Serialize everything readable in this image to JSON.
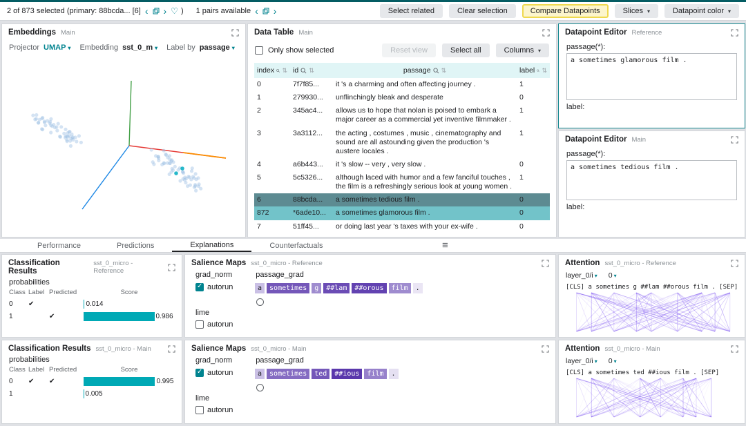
{
  "colors": {
    "accent": "#00838f",
    "score_bar": "#00a9b5",
    "salience_base": "#512da8",
    "attention_line": "#6b3df0",
    "selected_primary_row": "#5d8b92",
    "selected_secondary_row": "#72c3c9",
    "compare_button_bg": "#fcf5cc",
    "compare_button_border": "#efd94e"
  },
  "icons": {
    "prev": "‹",
    "next": "›",
    "favorite": "♡",
    "caret_down": "▾",
    "sort": "⇅",
    "menu": "≡",
    "check": "✔"
  },
  "toolbar": {
    "selection_text": "2 of 873 selected (primary: 88bcda... [6]",
    "selection_suffix": ")",
    "pairs_text": "1 pairs available",
    "buttons": {
      "select_related": "Select related",
      "clear_selection": "Clear selection",
      "compare_datapoints": "Compare Datapoints",
      "slices": "Slices",
      "datapoint_color": "Datapoint color"
    }
  },
  "embeddings": {
    "title": "Embeddings",
    "subtitle": "Main",
    "projector_label": "Projector",
    "projector_value": "UMAP",
    "embedding_label": "Embedding",
    "embedding_value": "sst_0_m",
    "label_by_label": "Label by",
    "label_by_value": "passage"
  },
  "data_table": {
    "title": "Data Table",
    "subtitle": "Main",
    "only_show_selected": "Only show selected",
    "reset_view": "Reset view",
    "select_all": "Select all",
    "columns": "Columns",
    "headers": [
      "index",
      "id",
      "passage",
      "label"
    ],
    "rows": [
      {
        "index": "0",
        "id": "7f7f85...",
        "passage": "it 's a charming and often affecting journey .",
        "label": "1",
        "state": ""
      },
      {
        "index": "1",
        "id": "279930...",
        "passage": "unflinchingly bleak and desperate",
        "label": "0",
        "state": ""
      },
      {
        "index": "2",
        "id": "345ac4...",
        "passage": "allows us to hope that nolan is poised to embark a major career as a commercial yet inventive filmmaker .",
        "label": "1",
        "state": ""
      },
      {
        "index": "3",
        "id": "3a3112...",
        "passage": "the acting , costumes , music , cinematography and sound are all astounding given the production 's austere locales .",
        "label": "1",
        "state": ""
      },
      {
        "index": "4",
        "id": "a6b443...",
        "passage": "it 's slow -- very , very slow .",
        "label": "0",
        "state": ""
      },
      {
        "index": "5",
        "id": "5c5326...",
        "passage": "although laced with humor and a few fanciful touches , the film is a refreshingly serious look at young women .",
        "label": "1",
        "state": ""
      },
      {
        "index": "6",
        "id": "88bcda...",
        "passage": "a sometimes tedious film .",
        "label": "0",
        "state": "primary"
      },
      {
        "index": "872",
        "id": "*6ade10...",
        "passage": "a sometimes glamorous film .",
        "label": "0",
        "state": "secondary"
      },
      {
        "index": "7",
        "id": "51ff45...",
        "passage": "or doing last year 's taxes with your ex-wife .",
        "label": "0",
        "state": ""
      }
    ]
  },
  "datapoint_editor_reference": {
    "title": "Datapoint Editor",
    "subtitle": "Reference",
    "passage_label": "passage(*):",
    "passage_value": "a sometimes glamorous film .",
    "label_label": "label:"
  },
  "datapoint_editor_main": {
    "title": "Datapoint Editor",
    "subtitle": "Main",
    "passage_label": "passage(*):",
    "passage_value": "a sometimes tedious film .",
    "label_label": "label:"
  },
  "tabs": {
    "items": [
      "Performance",
      "Predictions",
      "Explanations",
      "Counterfactuals"
    ],
    "active": "Explanations"
  },
  "classification_reference": {
    "title": "Classification Results",
    "subtitle": "sst_0_micro - Reference",
    "section_label": "probabilities",
    "headers": [
      "Class",
      "Label",
      "Predicted",
      "Score"
    ],
    "rows": [
      {
        "class": "0",
        "label": true,
        "predicted": false,
        "score": 0.014,
        "score_text": "0.014"
      },
      {
        "class": "1",
        "label": false,
        "predicted": true,
        "score": 0.986,
        "score_text": "0.986"
      }
    ]
  },
  "classification_main": {
    "title": "Classification Results",
    "subtitle": "sst_0_micro - Main",
    "section_label": "probabilities",
    "headers": [
      "Class",
      "Label",
      "Predicted",
      "Score"
    ],
    "rows": [
      {
        "class": "0",
        "label": true,
        "predicted": true,
        "score": 0.995,
        "score_text": "0.995"
      },
      {
        "class": "1",
        "label": false,
        "predicted": false,
        "score": 0.005,
        "score_text": "0.005"
      }
    ]
  },
  "salience_reference": {
    "title": "Salience Maps",
    "subtitle": "sst_0_micro - Reference",
    "method_label": "grad_norm",
    "field_label": "passage_grad",
    "autorun_label": "autorun",
    "lime_label": "lime",
    "grad_autorun_checked": true,
    "lime_autorun_checked": false,
    "tokens": [
      {
        "text": "a",
        "weight": 0.3
      },
      {
        "text": "sometimes",
        "weight": 0.8
      },
      {
        "text": "g",
        "weight": 0.55
      },
      {
        "text": "##lam",
        "weight": 0.85
      },
      {
        "text": "##orous",
        "weight": 0.9
      },
      {
        "text": "film",
        "weight": 0.55
      },
      {
        "text": ".",
        "weight": 0.12
      }
    ]
  },
  "salience_main": {
    "title": "Salience Maps",
    "subtitle": "sst_0_micro - Main",
    "method_label": "grad_norm",
    "field_label": "passage_grad",
    "autorun_label": "autorun",
    "lime_label": "lime",
    "grad_autorun_checked": true,
    "lime_autorun_checked": false,
    "tokens": [
      {
        "text": "a",
        "weight": 0.3
      },
      {
        "text": "sometimes",
        "weight": 0.7
      },
      {
        "text": "ted",
        "weight": 0.8
      },
      {
        "text": "##ious",
        "weight": 0.95
      },
      {
        "text": "film",
        "weight": 0.6
      },
      {
        "text": ".",
        "weight": 0.15
      }
    ]
  },
  "attention_reference": {
    "title": "Attention",
    "subtitle": "sst_0_micro - Reference",
    "layer_label": "layer_0/i",
    "head_label": "0",
    "tokens": [
      "[CLS]",
      "a",
      "sometimes",
      "g",
      "##lam",
      "##orous",
      "film",
      ".",
      "[SEP]"
    ]
  },
  "attention_main": {
    "title": "Attention",
    "subtitle": "sst_0_micro - Main",
    "layer_label": "layer_0/i",
    "head_label": "0",
    "tokens": [
      "[CLS]",
      "a",
      "sometimes",
      "ted",
      "##ious",
      "film",
      ".",
      "[SEP]"
    ]
  }
}
